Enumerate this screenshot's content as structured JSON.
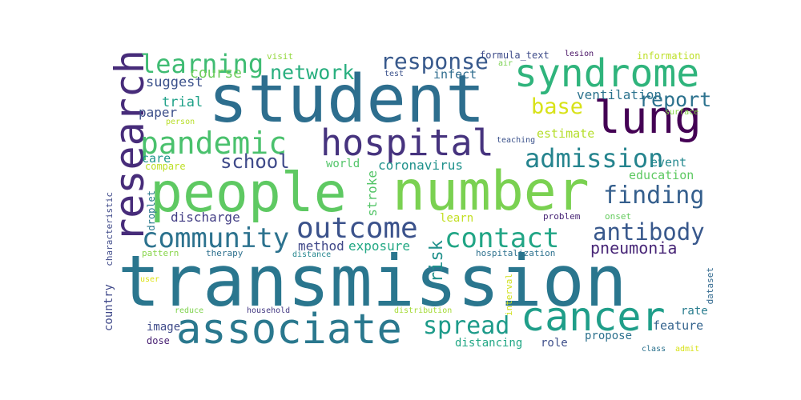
{
  "word_cloud": {
    "words": [
      {
        "key": "transmission",
        "text": "transmission",
        "color": "#2a768e"
      },
      {
        "key": "student",
        "text": "student",
        "color": "#2d6e8e"
      },
      {
        "key": "people",
        "text": "people",
        "color": "#5ec962"
      },
      {
        "key": "number",
        "text": "number",
        "color": "#7ad151"
      },
      {
        "key": "research",
        "text": "research",
        "color": "#472c7a"
      },
      {
        "key": "syndrome",
        "text": "syndrome",
        "color": "#2fb47c"
      },
      {
        "key": "lung",
        "text": "lung",
        "color": "#440154"
      },
      {
        "key": "hospital",
        "text": "hospital",
        "color": "#46337e"
      },
      {
        "key": "associate",
        "text": "associate",
        "color": "#2a788e"
      },
      {
        "key": "cancer",
        "text": "cancer",
        "color": "#1f9e89"
      },
      {
        "key": "pandemic",
        "text": "pandemic",
        "color": "#4ac16d"
      },
      {
        "key": "outcome",
        "text": "outcome",
        "color": "#3b528b"
      },
      {
        "key": "community",
        "text": "community",
        "color": "#2c728e"
      },
      {
        "key": "contact",
        "text": "contact",
        "color": "#21a585"
      },
      {
        "key": "learning",
        "text": "learning",
        "color": "#3fbc73"
      },
      {
        "key": "admission",
        "text": "admission",
        "color": "#25848e"
      },
      {
        "key": "finding",
        "text": "finding",
        "color": "#355f8d"
      },
      {
        "key": "antibody",
        "text": "antibody",
        "color": "#38588c"
      },
      {
        "key": "spread",
        "text": "spread",
        "color": "#1e9b8a"
      },
      {
        "key": "response",
        "text": "response",
        "color": "#38598c"
      },
      {
        "key": "network",
        "text": "network",
        "color": "#29af7f"
      },
      {
        "key": "base",
        "text": "base",
        "color": "#d8e219"
      },
      {
        "key": "report",
        "text": "report",
        "color": "#2c728e"
      },
      {
        "key": "school",
        "text": "school",
        "color": "#3e4989"
      },
      {
        "key": "pneumonia",
        "text": "pneumonia",
        "color": "#482677"
      },
      {
        "key": "course",
        "text": "course",
        "color": "#6ccd5a"
      },
      {
        "key": "suggest",
        "text": "suggest",
        "color": "#3b518b"
      },
      {
        "key": "trial",
        "text": "trial",
        "color": "#1fa188"
      },
      {
        "key": "paper",
        "text": "paper",
        "color": "#3c4f8a"
      },
      {
        "key": "care",
        "text": "care",
        "color": "#1f978b"
      },
      {
        "key": "compare",
        "text": "compare",
        "color": "#bddf26"
      },
      {
        "key": "discharge",
        "text": "discharge",
        "color": "#433e85"
      },
      {
        "key": "method",
        "text": "method",
        "color": "#3f4788"
      },
      {
        "key": "exposure",
        "text": "exposure",
        "color": "#22a884"
      },
      {
        "key": "risk",
        "text": "risk",
        "color": "#21918c"
      },
      {
        "key": "stroke",
        "text": "stroke",
        "color": "#54c568"
      },
      {
        "key": "world",
        "text": "world",
        "color": "#52c569"
      },
      {
        "key": "coronavirus",
        "text": "coronavirus",
        "color": "#20928c"
      },
      {
        "key": "education",
        "text": "education",
        "color": "#5ec962"
      },
      {
        "key": "event",
        "text": "event",
        "color": "#23888e"
      },
      {
        "key": "estimate",
        "text": "estimate",
        "color": "#b5de2b"
      },
      {
        "key": "ventilation",
        "text": "ventilation",
        "color": "#2c738e"
      },
      {
        "key": "infect",
        "text": "infect",
        "color": "#2f6c8e"
      },
      {
        "key": "formula_text",
        "text": "formula_text",
        "color": "#3e4c8a"
      },
      {
        "key": "visit",
        "text": "visit",
        "color": "#95d840"
      },
      {
        "key": "test",
        "text": "test",
        "color": "#3b528b"
      },
      {
        "key": "air",
        "text": "air",
        "color": "#7ad151"
      },
      {
        "key": "lesion",
        "text": "lesion",
        "color": "#471164"
      },
      {
        "key": "information",
        "text": "information",
        "color": "#bddf26"
      },
      {
        "key": "surface",
        "text": "surface",
        "color": "#86d549"
      },
      {
        "key": "person",
        "text": "person",
        "color": "#b8de29"
      },
      {
        "key": "teaching",
        "text": "teaching",
        "color": "#3b528b"
      },
      {
        "key": "learn",
        "text": "learn",
        "color": "#c2df23"
      },
      {
        "key": "problem",
        "text": "problem",
        "color": "#482576"
      },
      {
        "key": "onset",
        "text": "onset",
        "color": "#65cb5e"
      },
      {
        "key": "droplet",
        "text": "droplet",
        "color": "#2a788e"
      },
      {
        "key": "characteristic",
        "text": "characteristic",
        "color": "#3e4989"
      },
      {
        "key": "pattern",
        "text": "pattern",
        "color": "#87d549"
      },
      {
        "key": "therapy",
        "text": "therapy",
        "color": "#2d708e"
      },
      {
        "key": "distance",
        "text": "distance",
        "color": "#24868e"
      },
      {
        "key": "hospitalization",
        "text": "hospitalization",
        "color": "#2d718e"
      },
      {
        "key": "user",
        "text": "user",
        "color": "#dde318"
      },
      {
        "key": "dataset",
        "text": "dataset",
        "color": "#31688e"
      },
      {
        "key": "interval",
        "text": "interval",
        "color": "#d0e11c"
      },
      {
        "key": "country",
        "text": "country",
        "color": "#3f4889"
      },
      {
        "key": "image",
        "text": "image",
        "color": "#3e4a89"
      },
      {
        "key": "reduce",
        "text": "reduce",
        "color": "#7fd34e"
      },
      {
        "key": "household",
        "text": "household",
        "color": "#443983"
      },
      {
        "key": "distribution",
        "text": "distribution",
        "color": "#a5db36"
      },
      {
        "key": "dose",
        "text": "dose",
        "color": "#482173"
      },
      {
        "key": "distancing",
        "text": "distancing",
        "color": "#22a785"
      },
      {
        "key": "role",
        "text": "role",
        "color": "#3d4e8a"
      },
      {
        "key": "propose",
        "text": "propose",
        "color": "#2d718e"
      },
      {
        "key": "feature",
        "text": "feature",
        "color": "#33638d"
      },
      {
        "key": "rate",
        "text": "rate",
        "color": "#287c8e"
      },
      {
        "key": "class",
        "text": "class",
        "color": "#2c728e"
      },
      {
        "key": "admit",
        "text": "admit",
        "color": "#d8e219"
      }
    ]
  }
}
